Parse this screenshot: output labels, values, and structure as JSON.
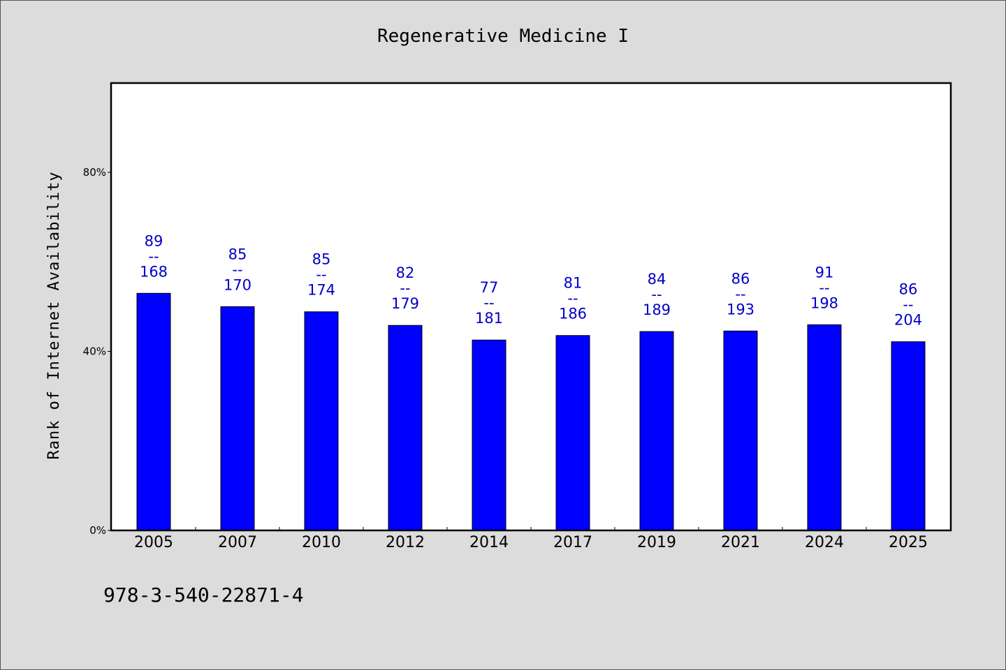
{
  "chart_data": {
    "type": "bar",
    "title": "Regenerative Medicine I",
    "xlabel": "",
    "ylabel": "Rank of Internet Availability",
    "categories": [
      "2005",
      "2007",
      "2010",
      "2012",
      "2014",
      "2017",
      "2019",
      "2021",
      "2024",
      "2025"
    ],
    "values": [
      52.98,
      50.0,
      48.85,
      45.81,
      42.54,
      43.55,
      44.44,
      44.56,
      45.96,
      42.16
    ],
    "bar_labels": [
      {
        "top": "89",
        "sep": "--",
        "bottom": "168"
      },
      {
        "top": "85",
        "sep": "--",
        "bottom": "170"
      },
      {
        "top": "85",
        "sep": "--",
        "bottom": "174"
      },
      {
        "top": "82",
        "sep": "--",
        "bottom": "179"
      },
      {
        "top": "77",
        "sep": "--",
        "bottom": "181"
      },
      {
        "top": "81",
        "sep": "--",
        "bottom": "186"
      },
      {
        "top": "84",
        "sep": "--",
        "bottom": "189"
      },
      {
        "top": "86",
        "sep": "--",
        "bottom": "193"
      },
      {
        "top": "91",
        "sep": "--",
        "bottom": "198"
      },
      {
        "top": "86",
        "sep": "--",
        "bottom": "204"
      }
    ],
    "yticks": [
      "0%",
      "40%",
      "80%"
    ],
    "ytick_values": [
      0,
      40,
      80
    ],
    "ylim": [
      0,
      100
    ],
    "grid": false,
    "legend": "none",
    "bar_color": "#0000ff",
    "label_color": "#0000c8"
  },
  "footnote": "978-3-540-22871-4"
}
